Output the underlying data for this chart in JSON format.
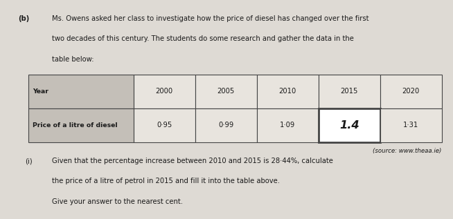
{
  "background_color": "#dedad4",
  "part_label": "(b)",
  "intro_text_line1": "Ms. Owens asked her class to investigate how the price of diesel has changed over the first",
  "intro_text_line2": "two decades of this century. The students do some research and gather the data in the",
  "intro_text_line3": "table below:",
  "table_headers": [
    "Year",
    "2000",
    "2005",
    "2010",
    "2015",
    "2020"
  ],
  "table_row_label": "Price of a litre of diesel",
  "table_values": [
    "0·95",
    "0·99",
    "1·09",
    "1·4",
    "1·31"
  ],
  "highlight_col": 4,
  "handwritten_value": "1.4",
  "source_text": "(source: www.theaa.ie)",
  "sub_label": "(i)",
  "sub_text_line1": "Given that the percentage increase between 2010 and 2015 is 28·44%, calculate",
  "sub_text_line2": "the price of a litre of petrol in 2015 and fill it into the table above.",
  "sub_text_line3": "Give your answer to the nearest cent.",
  "header_bg": "#c4bfb8",
  "cell_bg": "#e8e4de",
  "highlight_bg": "#ffffff",
  "border_color": "#444444",
  "text_color": "#1a1a1a"
}
